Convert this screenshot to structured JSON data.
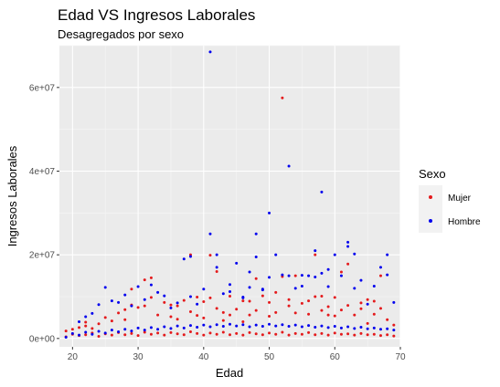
{
  "chart_data": {
    "type": "scatter",
    "title": "Edad VS Ingresos Laborales",
    "subtitle": "Desagregados por sexo",
    "xlabel": "Edad",
    "ylabel": "Ingresos Laborales",
    "xlim": [
      18,
      70
    ],
    "ylim": [
      -2000000,
      70000000
    ],
    "x_ticks": [
      20,
      30,
      40,
      50,
      60,
      70
    ],
    "y_ticks": [
      0,
      20000000,
      40000000,
      60000000
    ],
    "x_tick_labels": [
      "20",
      "30",
      "40",
      "50",
      "60",
      "70"
    ],
    "y_tick_labels": [
      "0e+00",
      "2e+07",
      "4e+07",
      "6e+07"
    ],
    "grid": true,
    "legend": {
      "title": "Sexo",
      "position": "right"
    },
    "series": [
      {
        "name": "Mujer",
        "color": "#E41A1C",
        "points": [
          [
            19,
            1800000
          ],
          [
            20,
            2200000
          ],
          [
            21,
            2600000
          ],
          [
            22,
            3900000
          ],
          [
            22,
            3000000
          ],
          [
            23,
            2400000
          ],
          [
            24,
            3500000
          ],
          [
            25,
            5000000
          ],
          [
            26,
            4200000
          ],
          [
            27,
            6100000
          ],
          [
            28,
            6900000
          ],
          [
            28,
            4500000
          ],
          [
            29,
            11800000
          ],
          [
            29,
            8000000
          ],
          [
            30,
            7400000
          ],
          [
            31,
            7800000
          ],
          [
            31,
            14000000
          ],
          [
            32,
            9800000
          ],
          [
            32,
            14500000
          ],
          [
            33,
            5600000
          ],
          [
            34,
            8600000
          ],
          [
            35,
            8000000
          ],
          [
            35,
            5200000
          ],
          [
            36,
            7800000
          ],
          [
            36,
            4600000
          ],
          [
            37,
            9100000
          ],
          [
            38,
            20000000
          ],
          [
            38,
            6400000
          ],
          [
            39,
            5500000
          ],
          [
            39,
            9900000
          ],
          [
            40,
            8800000
          ],
          [
            40,
            4900000
          ],
          [
            41,
            9700000
          ],
          [
            41,
            19900000
          ],
          [
            42,
            7200000
          ],
          [
            42,
            16000000
          ],
          [
            43,
            6200000
          ],
          [
            43,
            4300000
          ],
          [
            44,
            10100000
          ],
          [
            44,
            5600000
          ],
          [
            45,
            7000000
          ],
          [
            46,
            9000000
          ],
          [
            46,
            4000000
          ],
          [
            47,
            5600000
          ],
          [
            47,
            8900000
          ],
          [
            48,
            6700000
          ],
          [
            48,
            14300000
          ],
          [
            49,
            10200000
          ],
          [
            50,
            5300000
          ],
          [
            50,
            8600000
          ],
          [
            51,
            11000000
          ],
          [
            51,
            6200000
          ],
          [
            52,
            57500000
          ],
          [
            52,
            14800000
          ],
          [
            53,
            7800000
          ],
          [
            53,
            9300000
          ],
          [
            54,
            6100000
          ],
          [
            54,
            15000000
          ],
          [
            55,
            8400000
          ],
          [
            56,
            5800000
          ],
          [
            56,
            9000000
          ],
          [
            57,
            10000000
          ],
          [
            57,
            20000000
          ],
          [
            58,
            6700000
          ],
          [
            58,
            10100000
          ],
          [
            59,
            7600000
          ],
          [
            59,
            5600000
          ],
          [
            60,
            9800000
          ],
          [
            60,
            5400000
          ],
          [
            61,
            15900000
          ],
          [
            61,
            6800000
          ],
          [
            62,
            7900000
          ],
          [
            62,
            17800000
          ],
          [
            63,
            5600000
          ],
          [
            64,
            7100000
          ],
          [
            64,
            8500000
          ],
          [
            65,
            9300000
          ],
          [
            65,
            3600000
          ],
          [
            66,
            5800000
          ],
          [
            66,
            8900000
          ],
          [
            67,
            15000000
          ],
          [
            67,
            7200000
          ],
          [
            68,
            4500000
          ],
          [
            69,
            3200000
          ],
          [
            19,
            400000
          ],
          [
            20,
            1000000
          ],
          [
            21,
            700000
          ],
          [
            22,
            900000
          ],
          [
            23,
            1300000
          ],
          [
            24,
            500000
          ],
          [
            25,
            1100000
          ],
          [
            26,
            800000
          ],
          [
            27,
            1400000
          ],
          [
            28,
            900000
          ],
          [
            29,
            1200000
          ],
          [
            30,
            700000
          ],
          [
            31,
            1500000
          ],
          [
            32,
            1000000
          ],
          [
            33,
            1300000
          ],
          [
            34,
            800000
          ],
          [
            35,
            1400000
          ],
          [
            36,
            1100000
          ],
          [
            37,
            900000
          ],
          [
            38,
            1600000
          ],
          [
            39,
            1200000
          ],
          [
            40,
            800000
          ],
          [
            41,
            1300000
          ],
          [
            42,
            1000000
          ],
          [
            43,
            1500000
          ],
          [
            44,
            900000
          ],
          [
            45,
            1200000
          ],
          [
            46,
            800000
          ],
          [
            47,
            1400000
          ],
          [
            48,
            1100000
          ],
          [
            49,
            900000
          ],
          [
            50,
            1300000
          ],
          [
            51,
            1000000
          ],
          [
            52,
            1500000
          ],
          [
            53,
            800000
          ],
          [
            54,
            1200000
          ],
          [
            55,
            1000000
          ],
          [
            56,
            1400000
          ],
          [
            57,
            900000
          ],
          [
            58,
            1200000
          ],
          [
            59,
            800000
          ],
          [
            60,
            1300000
          ],
          [
            61,
            1000000
          ],
          [
            62,
            1100000
          ],
          [
            63,
            800000
          ],
          [
            64,
            1200000
          ],
          [
            65,
            900000
          ],
          [
            66,
            1000000
          ],
          [
            67,
            700000
          ],
          [
            68,
            900000
          ],
          [
            69,
            600000
          ]
        ]
      },
      {
        "name": "Hombre",
        "color": "#0000EE",
        "points": [
          [
            21,
            4000000
          ],
          [
            22,
            5200000
          ],
          [
            23,
            6000000
          ],
          [
            24,
            8100000
          ],
          [
            25,
            12200000
          ],
          [
            26,
            9000000
          ],
          [
            27,
            8600000
          ],
          [
            28,
            10400000
          ],
          [
            29,
            7800000
          ],
          [
            30,
            12400000
          ],
          [
            31,
            9300000
          ],
          [
            32,
            12800000
          ],
          [
            33,
            11000000
          ],
          [
            34,
            10200000
          ],
          [
            35,
            7300000
          ],
          [
            36,
            8500000
          ],
          [
            37,
            19000000
          ],
          [
            38,
            19600000
          ],
          [
            38,
            10000000
          ],
          [
            39,
            8200000
          ],
          [
            40,
            11800000
          ],
          [
            41,
            68500000
          ],
          [
            41,
            25000000
          ],
          [
            42,
            17000000
          ],
          [
            42,
            20000000
          ],
          [
            43,
            10700000
          ],
          [
            44,
            11200000
          ],
          [
            45,
            18000000
          ],
          [
            46,
            9900000
          ],
          [
            47,
            15900000
          ],
          [
            47,
            12200000
          ],
          [
            48,
            25000000
          ],
          [
            48,
            19500000
          ],
          [
            49,
            11800000
          ],
          [
            50,
            30000000
          ],
          [
            50,
            14600000
          ],
          [
            51,
            20000000
          ],
          [
            52,
            15200000
          ],
          [
            53,
            41200000
          ],
          [
            53,
            15000000
          ],
          [
            54,
            12000000
          ],
          [
            55,
            15100000
          ],
          [
            55,
            12500000
          ],
          [
            56,
            15000000
          ],
          [
            57,
            21000000
          ],
          [
            57,
            14700000
          ],
          [
            58,
            35000000
          ],
          [
            58,
            15600000
          ],
          [
            59,
            16500000
          ],
          [
            59,
            12400000
          ],
          [
            60,
            20000000
          ],
          [
            61,
            15000000
          ],
          [
            62,
            23000000
          ],
          [
            62,
            22000000
          ],
          [
            63,
            20200000
          ],
          [
            63,
            12000000
          ],
          [
            64,
            13900000
          ],
          [
            65,
            8200000
          ],
          [
            66,
            12500000
          ],
          [
            67,
            17000000
          ],
          [
            68,
            20000000
          ],
          [
            68,
            15200000
          ],
          [
            69,
            8600000
          ],
          [
            49,
            11600000
          ],
          [
            46,
            9700000
          ],
          [
            44,
            12900000
          ],
          [
            19,
            300000
          ],
          [
            20,
            1200000
          ],
          [
            21,
            800000
          ],
          [
            22,
            1500000
          ],
          [
            23,
            1000000
          ],
          [
            24,
            1700000
          ],
          [
            25,
            1300000
          ],
          [
            26,
            2000000
          ],
          [
            27,
            1600000
          ],
          [
            28,
            2200000
          ],
          [
            29,
            1800000
          ],
          [
            30,
            2500000
          ],
          [
            31,
            2000000
          ],
          [
            32,
            2600000
          ],
          [
            33,
            2200000
          ],
          [
            34,
            2800000
          ],
          [
            35,
            2400000
          ],
          [
            36,
            3000000
          ],
          [
            37,
            2500000
          ],
          [
            38,
            3100000
          ],
          [
            39,
            2700000
          ],
          [
            40,
            3200000
          ],
          [
            41,
            2800000
          ],
          [
            42,
            3300000
          ],
          [
            43,
            2900000
          ],
          [
            44,
            3400000
          ],
          [
            45,
            3000000
          ],
          [
            46,
            3300000
          ],
          [
            47,
            2800000
          ],
          [
            48,
            3200000
          ],
          [
            49,
            2900000
          ],
          [
            50,
            3400000
          ],
          [
            51,
            3000000
          ],
          [
            52,
            3300000
          ],
          [
            53,
            2900000
          ],
          [
            54,
            3200000
          ],
          [
            55,
            2800000
          ],
          [
            56,
            3100000
          ],
          [
            57,
            2700000
          ],
          [
            58,
            3000000
          ],
          [
            59,
            2600000
          ],
          [
            60,
            2900000
          ],
          [
            61,
            2500000
          ],
          [
            62,
            2800000
          ],
          [
            63,
            2400000
          ],
          [
            64,
            2700000
          ],
          [
            65,
            2300000
          ],
          [
            66,
            2500000
          ],
          [
            67,
            2200000
          ],
          [
            68,
            2300000
          ],
          [
            69,
            2000000
          ]
        ]
      }
    ]
  },
  "colors": {
    "panel": "#EBEBEB",
    "grid_major": "#FFFFFF",
    "grid_minor": "#F5F5F5",
    "legend_key_bg": "#F2F2F2"
  }
}
